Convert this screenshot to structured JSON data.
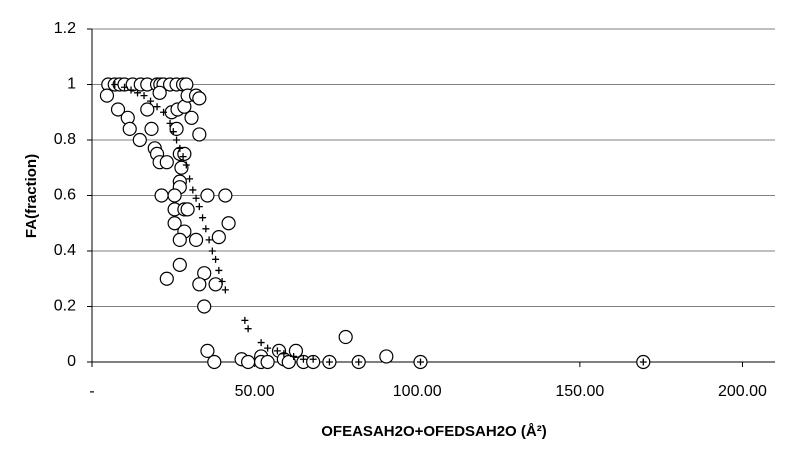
{
  "chart_data": {
    "type": "scatter",
    "xlabel": "OFEASAH2O+OFEDSAH2O (Å²)",
    "ylabel": "FA(fraction)",
    "xlim": [
      0,
      210
    ],
    "xticks": [
      {
        "value": 0,
        "label": "-"
      },
      {
        "value": 50,
        "label": "50.00"
      },
      {
        "value": 100,
        "label": "100.00"
      },
      {
        "value": 150,
        "label": "150.00"
      },
      {
        "value": 200,
        "label": "200.00"
      }
    ],
    "ylim": [
      0,
      1.2
    ],
    "yticks": [
      0,
      0.2,
      0.4,
      0.6,
      0.8,
      1,
      1.2
    ],
    "grid": true,
    "series": [
      {
        "marker": "circle",
        "color": "#000000",
        "x": [
          5,
          7,
          8.5,
          10,
          12.5,
          15,
          17,
          20,
          21,
          22,
          24,
          26,
          28,
          29,
          4.6,
          8,
          11,
          11.6,
          14.7,
          17,
          18.3,
          19.3,
          20,
          20.8,
          20.8,
          23,
          24.5,
          26,
          26.3,
          27,
          27.5,
          27,
          27,
          28.4,
          28.4,
          29.4,
          30.6,
          32,
          33,
          33,
          21.4,
          25.4,
          25.4,
          25.4,
          28.4,
          29.4,
          28.4,
          27,
          32,
          35.5,
          41,
          42,
          39,
          34.5,
          33,
          38,
          23,
          27,
          34.5,
          35.5,
          37.6,
          46,
          48,
          52,
          52,
          54,
          57.5,
          59,
          60.5,
          62.7,
          65,
          68,
          73,
          78,
          82,
          90.5,
          101,
          169.5
        ],
        "y": [
          1,
          1,
          1,
          1,
          1,
          1,
          1,
          1,
          1,
          1,
          1,
          1,
          1,
          1,
          0.96,
          0.91,
          0.88,
          0.84,
          0.8,
          0.91,
          0.84,
          0.77,
          0.75,
          0.72,
          0.97,
          0.72,
          0.9,
          0.84,
          0.91,
          0.75,
          0.7,
          0.65,
          0.63,
          0.75,
          0.92,
          0.96,
          0.88,
          0.96,
          0.95,
          0.82,
          0.6,
          0.6,
          0.55,
          0.5,
          0.55,
          0.55,
          0.47,
          0.44,
          0.44,
          0.6,
          0.6,
          0.5,
          0.45,
          0.32,
          0.28,
          0.28,
          0.3,
          0.35,
          0.2,
          0.04,
          0,
          0.01,
          0,
          0.02,
          0,
          0,
          0.04,
          0.01,
          0,
          0.04,
          0,
          0,
          0,
          0.09,
          0,
          0.02,
          0,
          0
        ]
      },
      {
        "marker": "plus",
        "color": "#000000",
        "x": [
          7,
          10,
          12,
          14,
          16,
          18,
          20,
          22,
          24,
          25,
          26,
          27,
          28,
          29,
          30,
          31,
          32,
          33,
          34,
          35,
          36,
          37,
          38,
          39,
          40,
          41,
          47,
          48,
          52,
          54,
          57,
          59,
          62,
          65,
          68,
          73,
          82,
          101,
          169.5
        ],
        "y": [
          1,
          0.99,
          0.98,
          0.97,
          0.96,
          0.94,
          0.92,
          0.9,
          0.86,
          0.83,
          0.8,
          0.77,
          0.74,
          0.71,
          0.66,
          0.62,
          0.59,
          0.56,
          0.52,
          0.48,
          0.44,
          0.4,
          0.37,
          0.33,
          0.29,
          0.26,
          0.15,
          0.12,
          0.07,
          0.05,
          0.04,
          0.03,
          0.02,
          0.01,
          0.01,
          0,
          0,
          0,
          0
        ]
      }
    ]
  }
}
